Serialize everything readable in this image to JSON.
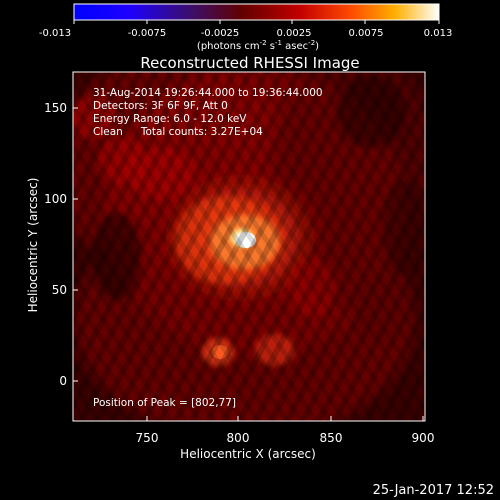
{
  "colorbar": {
    "ticks": [
      "-0.013",
      "-0.0075",
      "-0.0025",
      "0.0025",
      "0.0075",
      "0.013"
    ],
    "units_prefix": "(photons cm",
    "units_exp1": "-2",
    "units_mid": " s",
    "units_exp2": "-1",
    "units_mid2": " asec",
    "units_exp3": "-2",
    "units_suffix": ")"
  },
  "figure": {
    "title": "Reconstructed RHESSI Image",
    "x_label": "Heliocentric X (arcsec)",
    "y_label": "Heliocentric Y (arcsec)",
    "timestamp": "25-Jan-2017 12:52"
  },
  "annotations": {
    "line1": "31-Aug-2014 19:26:44.000 to 19:36:44.000",
    "line2": "Detectors: 3F 6F 9F, Att 0",
    "line3": "Energy Range: 6.0 - 12.0 keV",
    "line4_a": "Clean",
    "line4_b": "Total counts: 3.27E+04",
    "peak": "Position of Peak = [802,77]"
  },
  "axes": {
    "x_ticks": [
      "750",
      "800",
      "850",
      "900"
    ],
    "y_ticks": [
      "0",
      "50",
      "100",
      "150"
    ],
    "xlim": [
      712,
      900
    ],
    "ylim": [
      -23,
      168
    ],
    "x_ticks_values": [
      750,
      800,
      850,
      900
    ],
    "y_ticks_values": [
      0,
      50,
      100,
      150
    ]
  },
  "colors": {
    "background": "#000000",
    "foreground": "#ffffff",
    "peak": "#ffffff",
    "mid": "#ff7a2a",
    "low": "#6d0000"
  }
}
